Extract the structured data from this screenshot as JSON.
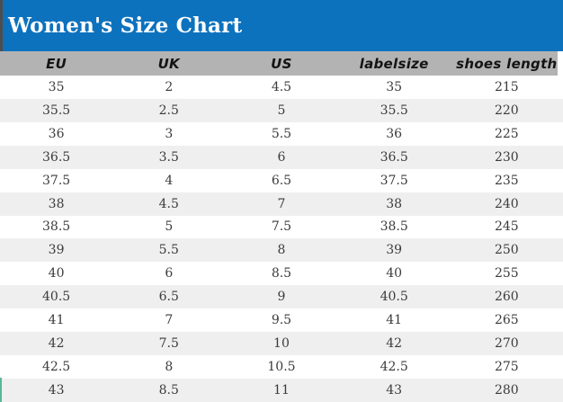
{
  "title": "Women's Size Chart",
  "table": {
    "columns": [
      "EU",
      "UK",
      "US",
      "labelsize",
      "shoes length"
    ],
    "rows": [
      [
        "35",
        "2",
        "4.5",
        "35",
        "215"
      ],
      [
        "35.5",
        "2.5",
        "5",
        "35.5",
        "220"
      ],
      [
        "36",
        "3",
        "5.5",
        "36",
        "225"
      ],
      [
        "36.5",
        "3.5",
        "6",
        "36.5",
        "230"
      ],
      [
        "37.5",
        "4",
        "6.5",
        "37.5",
        "235"
      ],
      [
        "38",
        "4.5",
        "7",
        "38",
        "240"
      ],
      [
        "38.5",
        "5",
        "7.5",
        "38.5",
        "245"
      ],
      [
        "39",
        "5.5",
        "8",
        "39",
        "250"
      ],
      [
        "40",
        "6",
        "8.5",
        "40",
        "255"
      ],
      [
        "40.5",
        "6.5",
        "9",
        "40.5",
        "260"
      ],
      [
        "41",
        "7",
        "9.5",
        "41",
        "265"
      ],
      [
        "42",
        "7.5",
        "10",
        "42",
        "270"
      ],
      [
        "42.5",
        "8",
        "10.5",
        "42.5",
        "275"
      ],
      [
        "43",
        "8.5",
        "11",
        "43",
        "280"
      ]
    ]
  },
  "colors": {
    "title_bar_blue": "#0D72BE",
    "header_row_gray": "#B3B3B3",
    "alt_row_gray": "#F0EFF0",
    "title_text": "#FFFFFF",
    "accent_teal": "#57B794",
    "left_border_dark": "#4D4D4D"
  }
}
